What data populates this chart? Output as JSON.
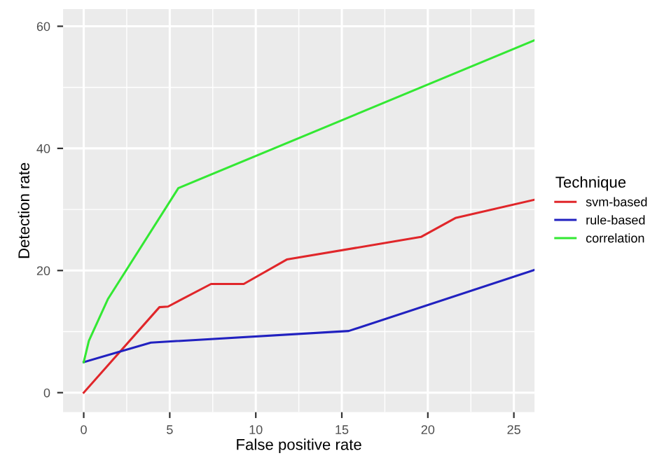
{
  "chart_data": {
    "type": "line",
    "xlabel": "False positive rate",
    "ylabel": "Detection rate",
    "legend_title": "Technique",
    "legend": "right",
    "grid": true,
    "xlim": [
      -1.2,
      26.2
    ],
    "ylim": [
      -3.2,
      62.8
    ],
    "xticks": [
      0,
      5,
      10,
      15,
      20,
      25
    ],
    "yticks": [
      0,
      20,
      40,
      60
    ],
    "series": [
      {
        "name": "svm-based",
        "color": "#e0262a",
        "x": [
          0,
          4.4,
          4.9,
          7.4,
          9.3,
          11.8,
          19.6,
          21.6,
          26.2
        ],
        "values": [
          0,
          14,
          14.1,
          17.8,
          17.8,
          21.8,
          25.5,
          28.6,
          31.6
        ]
      },
      {
        "name": "rule-based",
        "color": "#2121c0",
        "x": [
          0,
          3.9,
          15.4,
          26.2
        ],
        "values": [
          5,
          8.2,
          10.1,
          20.1
        ]
      },
      {
        "name": "correlation",
        "color": "#33e833",
        "x": [
          0,
          0.3,
          1.4,
          5.5,
          26.2
        ],
        "values": [
          5,
          8.5,
          15.3,
          33.5,
          57.7
        ]
      }
    ]
  }
}
